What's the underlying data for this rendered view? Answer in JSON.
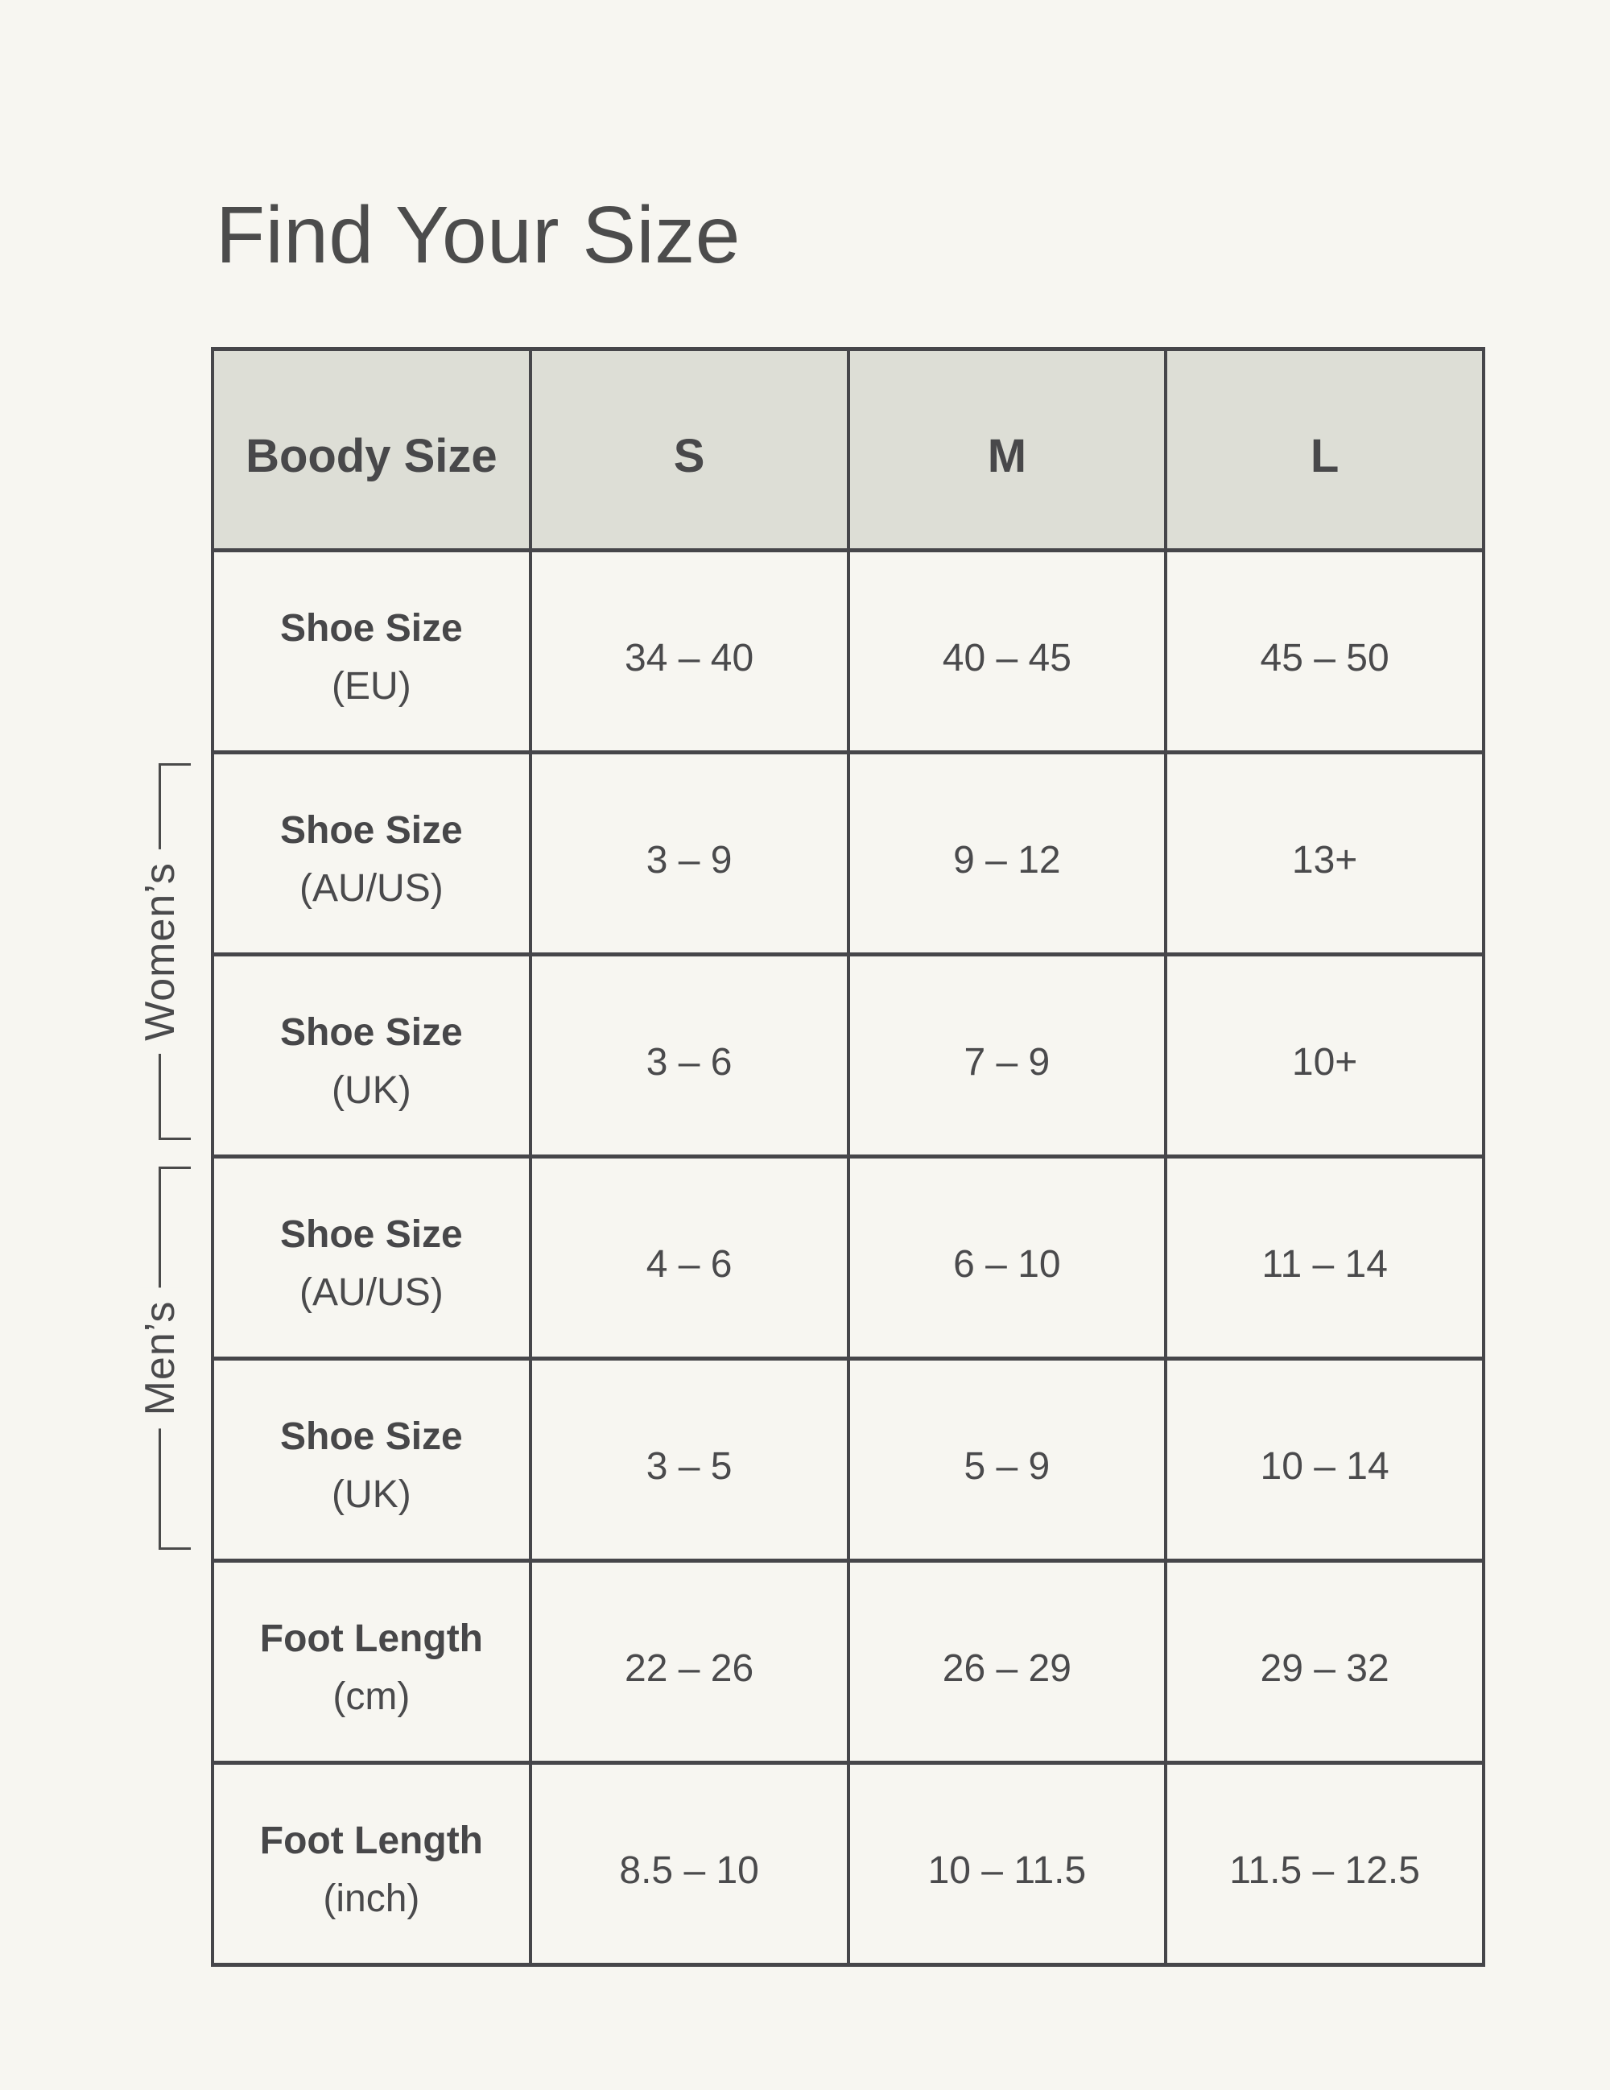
{
  "page": {
    "title": "Find Your Size"
  },
  "table": {
    "header": {
      "label": "Boody Size",
      "sizes": [
        "S",
        "M",
        "L"
      ]
    },
    "rows": [
      {
        "label_bold": "Shoe Size",
        "label_sub": "(EU)",
        "values": [
          "34 – 40",
          "40 – 45",
          "45 – 50"
        ]
      },
      {
        "label_bold": "Shoe Size",
        "label_sub": "(AU/US)",
        "values": [
          "3 – 9",
          "9 – 12",
          "13+"
        ]
      },
      {
        "label_bold": "Shoe Size",
        "label_sub": "(UK)",
        "values": [
          "3 – 6",
          "7 – 9",
          "10+"
        ]
      },
      {
        "label_bold": "Shoe Size",
        "label_sub": "(AU/US)",
        "values": [
          "4 – 6",
          "6 – 10",
          "11 – 14"
        ]
      },
      {
        "label_bold": "Shoe Size",
        "label_sub": "(UK)",
        "values": [
          "3 – 5",
          "5 – 9",
          "10 – 14"
        ]
      },
      {
        "label_bold": "Foot Length",
        "label_sub": "(cm)",
        "values": [
          "22 – 26",
          "26 – 29",
          "29 – 32"
        ]
      },
      {
        "label_bold": "Foot Length",
        "label_sub": "(inch)",
        "values": [
          "8.5 – 10",
          "10 – 11.5",
          "11.5 – 12.5"
        ]
      }
    ]
  },
  "brackets": {
    "womens": "Women’s",
    "mens": "Men’s"
  },
  "colors": {
    "page_background": "#F7F6F1",
    "header_background": "#DDDED6",
    "border": "#46464A",
    "text": "#4A4A4A"
  },
  "chart_data": {
    "type": "table",
    "title": "Find Your Size",
    "columns": [
      "Boody Size",
      "S",
      "M",
      "L"
    ],
    "rows": [
      [
        "Shoe Size (EU)",
        "34 – 40",
        "40 – 45",
        "45 – 50"
      ],
      [
        "Shoe Size (AU/US)",
        "3 – 9",
        "9 – 12",
        "13+"
      ],
      [
        "Shoe Size (UK)",
        "3 – 6",
        "7 – 9",
        "10+"
      ],
      [
        "Shoe Size (AU/US)",
        "4 – 6",
        "6 – 10",
        "11 – 14"
      ],
      [
        "Shoe Size (UK)",
        "3 – 5",
        "5 – 9",
        "10 – 14"
      ],
      [
        "Foot Length (cm)",
        "22 – 26",
        "26 – 29",
        "29 – 32"
      ],
      [
        "Foot Length (inch)",
        "8.5 – 10",
        "10 – 11.5",
        "11.5 – 12.5"
      ]
    ],
    "row_groups": [
      {
        "label": "Women’s",
        "row_indexes": [
          1,
          2
        ]
      },
      {
        "label": "Men’s",
        "row_indexes": [
          3,
          4
        ]
      }
    ],
    "legend_position": "none",
    "grid": true
  }
}
